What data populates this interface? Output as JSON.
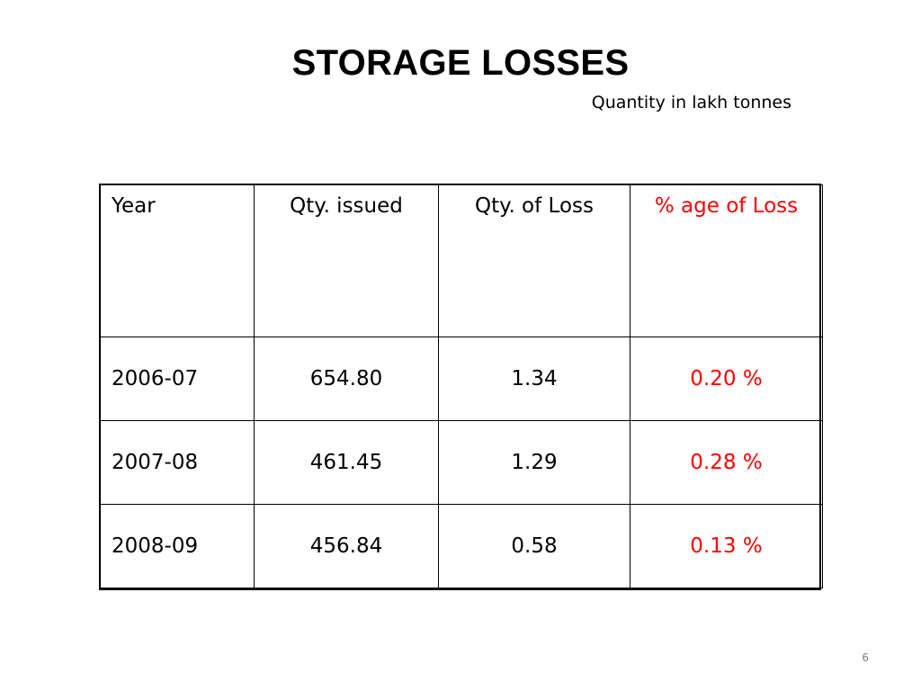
{
  "slide": {
    "title": "STORAGE LOSSES",
    "subtitle": "Quantity in lakh tonnes",
    "page_number": "6"
  },
  "table": {
    "headers": [
      "Year",
      "Qty. issued",
      "Qty. of Loss",
      "% age of Loss"
    ],
    "rows": [
      [
        "2006-07",
        "654.80",
        "1.34",
        "0.20 %"
      ],
      [
        "2007-08",
        "461.45",
        "1.29",
        "0.28 %"
      ],
      [
        "2008-09",
        "456.84",
        "0.58",
        "0.13 %"
      ]
    ]
  },
  "colors": {
    "highlight": "#ff0000",
    "text": "#000000",
    "page_number": "#7f7f7f"
  }
}
